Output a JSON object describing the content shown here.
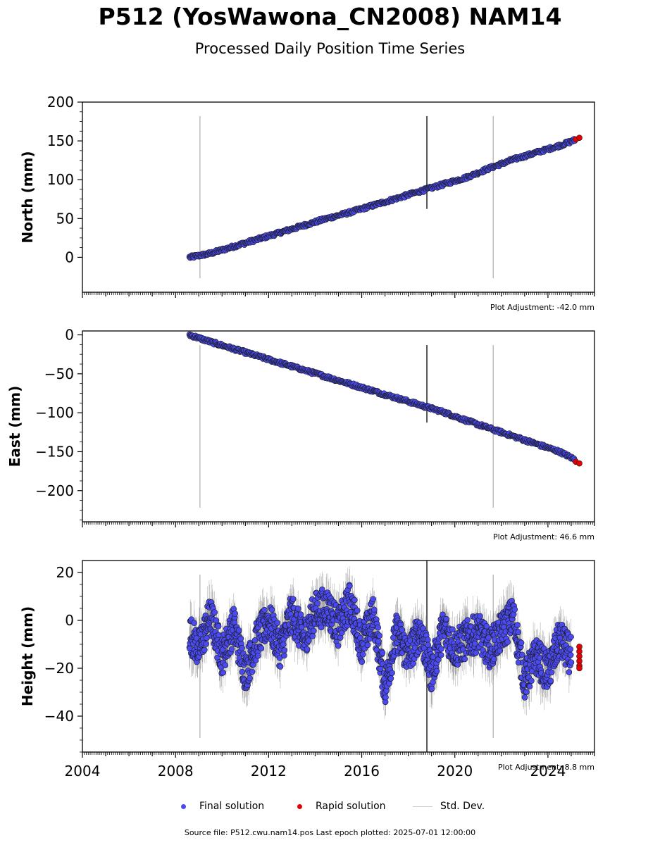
{
  "title": "P512 (YosWawona_CN2008) NAM14",
  "subtitle": "Processed Daily Position Time Series",
  "legend": {
    "final": "Final solution",
    "rapid": "Rapid solution",
    "std": "Std. Dev."
  },
  "footer": {
    "source": "Source file: P512.cwu.nam14.pos  Last epoch plotted: 2025-07-01 12:00:00"
  },
  "colors": {
    "final": "#4a4af0",
    "rapid": "#e60000",
    "std_dev": "#bdbdbd",
    "marker_edge": "#1a1a1a"
  },
  "chart_data": [
    {
      "type": "scatter",
      "ylabel": "North (mm)",
      "xlim": [
        2004,
        2026
      ],
      "ylim": [
        -45,
        200
      ],
      "yticks": [
        0,
        50,
        100,
        150,
        200
      ],
      "adjustment": "Plot Adjustment: -42.0 mm",
      "series": [
        {
          "name": "Final solution",
          "x": [
            2008.6,
            2009.5,
            2010.5,
            2011.5,
            2012.5,
            2013.5,
            2014.5,
            2015.5,
            2016.5,
            2017.5,
            2018.5,
            2019.5,
            2020.5,
            2021.5,
            2022.5,
            2023.5,
            2024.5,
            2025.15
          ],
          "y": [
            0,
            5,
            14,
            23,
            32,
            41,
            50,
            58,
            67,
            76,
            85,
            94,
            103,
            115,
            126,
            135,
            144,
            151
          ]
        },
        {
          "name": "Rapid solution",
          "x": [
            2025.2,
            2025.35
          ],
          "y": [
            152,
            154
          ]
        }
      ],
      "spikes": [
        2009.05,
        2018.8,
        2021.65
      ]
    },
    {
      "type": "scatter",
      "ylabel": "East (mm)",
      "xlim": [
        2004,
        2026
      ],
      "ylim": [
        -240,
        5
      ],
      "yticks": [
        0,
        -50,
        -100,
        -150,
        -200
      ],
      "adjustment": "Plot Adjustment: 46.6 mm",
      "series": [
        {
          "name": "Final solution",
          "x": [
            2008.6,
            2009.5,
            2010.5,
            2011.5,
            2012.5,
            2013.5,
            2014.5,
            2015.5,
            2016.5,
            2017.5,
            2018.5,
            2019.5,
            2020.5,
            2021.5,
            2022.5,
            2023.5,
            2024.5,
            2025.15
          ],
          "y": [
            0,
            -9,
            -18,
            -27,
            -36,
            -45,
            -54,
            -63,
            -72,
            -81,
            -90,
            -99,
            -110,
            -120,
            -130,
            -140,
            -150,
            -160
          ]
        },
        {
          "name": "Rapid solution",
          "x": [
            2025.2,
            2025.35
          ],
          "y": [
            -163,
            -165
          ]
        }
      ],
      "spikes": [
        2009.05,
        2018.8,
        2021.65
      ]
    },
    {
      "type": "scatter",
      "ylabel": "Height (mm)",
      "xlim": [
        2004,
        2026
      ],
      "ylim": [
        -55,
        25
      ],
      "yticks": [
        20,
        0,
        -20,
        -40
      ],
      "xticks": [
        2004,
        2008,
        2012,
        2016,
        2020,
        2024
      ],
      "adjustment": "Plot Adjustment: 8.8 mm",
      "series": [
        {
          "name": "Final solution",
          "x": [
            2008.6,
            2009.0,
            2009.5,
            2010.0,
            2010.5,
            2011.0,
            2011.5,
            2012.0,
            2012.5,
            2013.0,
            2013.5,
            2014.0,
            2014.5,
            2015.0,
            2015.5,
            2016.0,
            2016.5,
            2017.0,
            2017.5,
            2018.0,
            2018.5,
            2019.0,
            2019.5,
            2020.0,
            2020.5,
            2021.0,
            2021.5,
            2022.0,
            2022.5,
            2023.0,
            2023.5,
            2024.0,
            2024.5,
            2025.0
          ],
          "y": [
            -5,
            -12,
            2,
            -15,
            -2,
            -22,
            -8,
            0,
            -12,
            3,
            -8,
            4,
            6,
            -3,
            8,
            -10,
            2,
            -28,
            -5,
            -15,
            -4,
            -22,
            -3,
            -12,
            -8,
            -5,
            -12,
            -5,
            2,
            -25,
            -15,
            -22,
            -8,
            -15
          ]
        },
        {
          "name": "Rapid solution",
          "x": [
            2025.35,
            2025.35,
            2025.35,
            2025.35,
            2025.35,
            2025.35
          ],
          "y": [
            -11,
            -13,
            -15,
            -17,
            -19,
            -20
          ]
        }
      ],
      "spikes": [
        2009.05,
        2018.8,
        2021.65
      ]
    }
  ]
}
